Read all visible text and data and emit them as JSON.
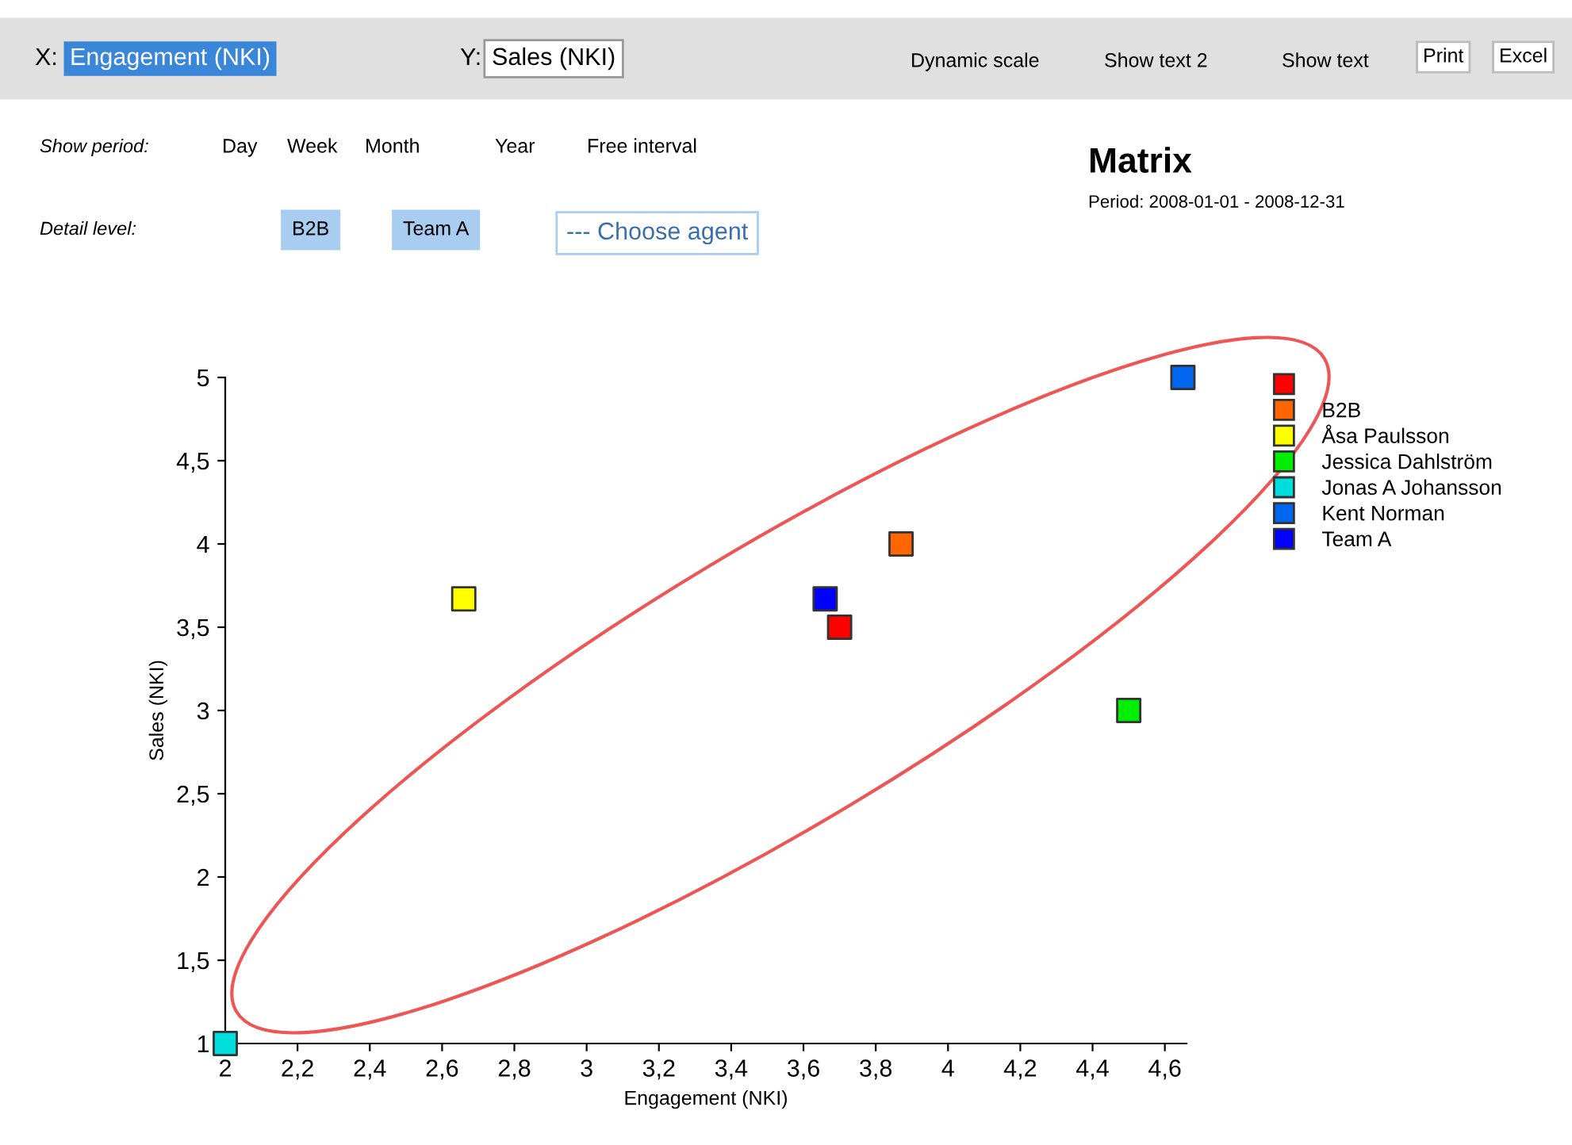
{
  "chart_data": {
    "type": "scatter",
    "title": "Matrix",
    "subtitle": "Period: 2008-01-01 - 2008-12-31",
    "xlabel": "Engagement (NKI)",
    "ylabel": "Sales (NKI)",
    "annotations": [
      "X:",
      "Engagement (NKI)",
      "Y:",
      "Sales (NKI)",
      "Dynamic scale",
      "Show text 2",
      "Show text",
      "Print",
      "Excel",
      "Show period:",
      "Day",
      "Week",
      "Month",
      "Year",
      "Free interval",
      "Detail level:",
      "B2B",
      "Team A",
      "--- Choose agent"
    ],
    "series": [
      {
        "color": "#ff0000",
        "x": [
          3.7
        ],
        "values": [
          3.5
        ]
      },
      {
        "name": "B2B",
        "color": "#ff6600",
        "x": [
          3.87
        ],
        "values": [
          4
        ]
      },
      {
        "name": "Åsa Paulsson",
        "color": "#ffff00",
        "x": [
          2.66
        ],
        "values": [
          3.67
        ]
      },
      {
        "name": "Jessica Dahlström",
        "color": "#00ee00",
        "x": [
          4.5
        ],
        "values": [
          3
        ]
      },
      {
        "name": "Jonas A Johansson",
        "color": "#00dddd",
        "x": [
          2
        ],
        "values": [
          1
        ]
      },
      {
        "name": "Kent Norman",
        "color": "#0066ee",
        "x": [
          4.65
        ],
        "values": [
          5
        ]
      },
      {
        "name": "Team A",
        "color": "#0000ff",
        "x": [
          3.66
        ],
        "values": [
          3.67
        ]
      }
    ],
    "xlim": [
      2,
      4.66
    ],
    "ylim": [
      1,
      5
    ],
    "xticks": [
      2,
      {
        "value": 2.2,
        "label": "2,2"
      },
      {
        "value": 2.4,
        "label": "2,4"
      },
      {
        "value": 2.6,
        "label": "2,6"
      },
      {
        "value": 2.8,
        "label": "2,8"
      },
      3,
      {
        "value": 3.2,
        "label": "3,2"
      },
      {
        "value": 3.4,
        "label": "3,4"
      },
      {
        "value": 3.6,
        "label": "3,6"
      },
      {
        "value": 3.8,
        "label": "3,8"
      },
      4,
      {
        "value": 4.2,
        "label": "4,2"
      },
      {
        "value": 4.4,
        "label": "4,4"
      },
      {
        "value": 4.6,
        "label": "4,6"
      }
    ],
    "yticks": [
      1,
      {
        "value": 1.5,
        "label": "1,5"
      },
      2,
      {
        "value": 2.5,
        "label": "2,5"
      },
      3,
      {
        "value": 3.5,
        "label": "3,5"
      },
      4,
      {
        "value": 4.5,
        "label": "4,5"
      },
      5
    ],
    "marker": "square",
    "grid": false,
    "legend": "right"
  }
}
